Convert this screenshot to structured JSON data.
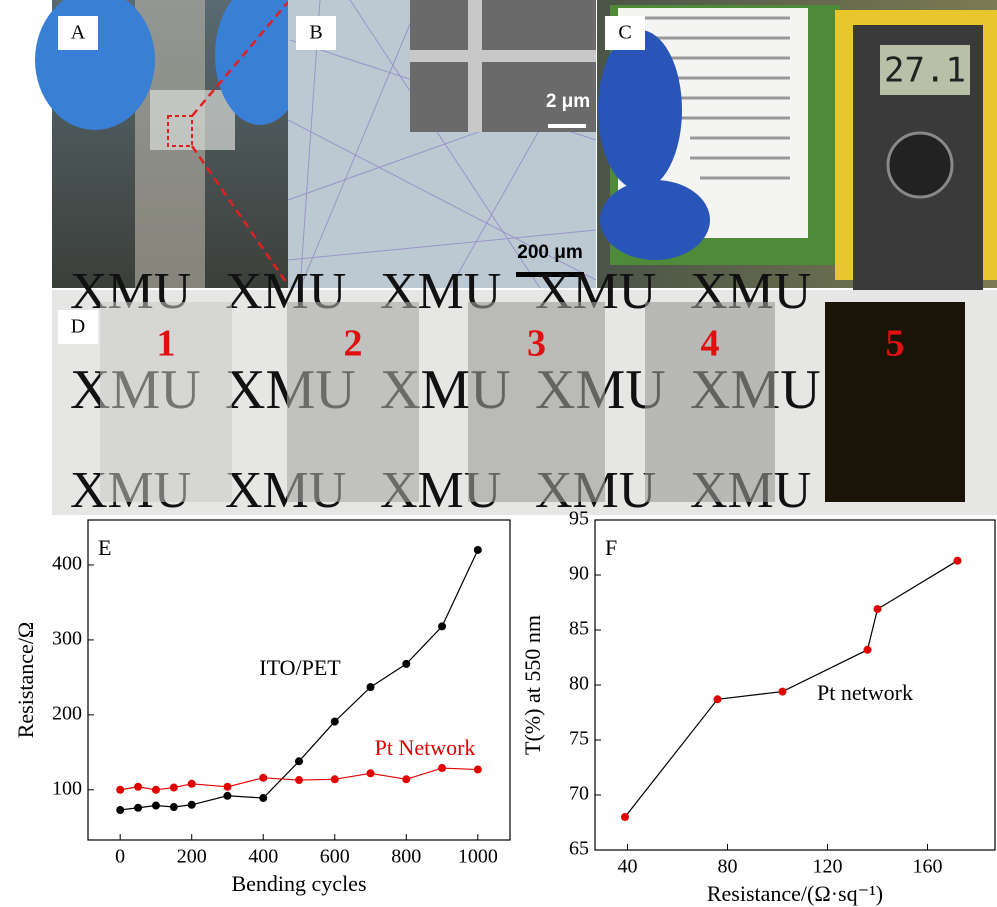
{
  "panels": {
    "a": {
      "label": "A"
    },
    "b": {
      "label": "B",
      "inset_scale": "2 μm",
      "scale": "200 μm"
    },
    "c": {
      "label": "C",
      "meter_reading": "27.1"
    },
    "d": {
      "label": "D",
      "word": "XMU",
      "samples": [
        "1",
        "2",
        "3",
        "4",
        "5"
      ]
    }
  },
  "chart_data": [
    {
      "type": "line",
      "panel_label": "E",
      "x_label": "Bending cycles",
      "y_label": "Resistance/Ω",
      "x": [
        0,
        50,
        100,
        150,
        200,
        300,
        400,
        500,
        600,
        700,
        800,
        900,
        1000
      ],
      "series": [
        {
          "name": "ITO/PET",
          "marker_color": "#000000",
          "line_color": "#000000",
          "values": [
            73,
            76,
            79,
            77,
            80,
            92,
            89,
            138,
            191,
            237,
            268,
            318,
            420
          ]
        },
        {
          "name": "Pt Network",
          "marker_color": "#e00000",
          "line_color": "#e00000",
          "values": [
            100,
            104,
            100,
            103,
            108,
            104,
            116,
            113,
            114,
            122,
            114,
            129,
            127
          ]
        }
      ],
      "annotations": [
        {
          "text": "ITO/PET",
          "color": "#000000"
        },
        {
          "text": "Pt Network",
          "color": "#e00000"
        }
      ],
      "xlim": [
        -90,
        1090
      ],
      "xticks": [
        0,
        200,
        400,
        600,
        800,
        1000
      ],
      "ylim": [
        33,
        460
      ],
      "yticks": [
        100,
        200,
        300,
        400
      ]
    },
    {
      "type": "line",
      "panel_label": "F",
      "x_label": "Resistance/(Ω·sq⁻¹)",
      "y_label": "T(%) at 550 nm",
      "x": [
        39,
        76,
        102,
        136,
        140,
        172
      ],
      "series": [
        {
          "marker_color": "#e00000",
          "line_color": "#000000",
          "values": [
            68,
            78.7,
            79.4,
            83.2,
            86.9,
            91.3
          ]
        }
      ],
      "annotations": [
        {
          "text": "Pt network",
          "color": "#000000"
        }
      ],
      "xlim": [
        27,
        187
      ],
      "xticks": [
        40,
        80,
        120,
        160
      ],
      "ylim": [
        65,
        95
      ],
      "yticks": [
        65,
        70,
        75,
        80,
        85,
        90,
        95
      ]
    }
  ]
}
